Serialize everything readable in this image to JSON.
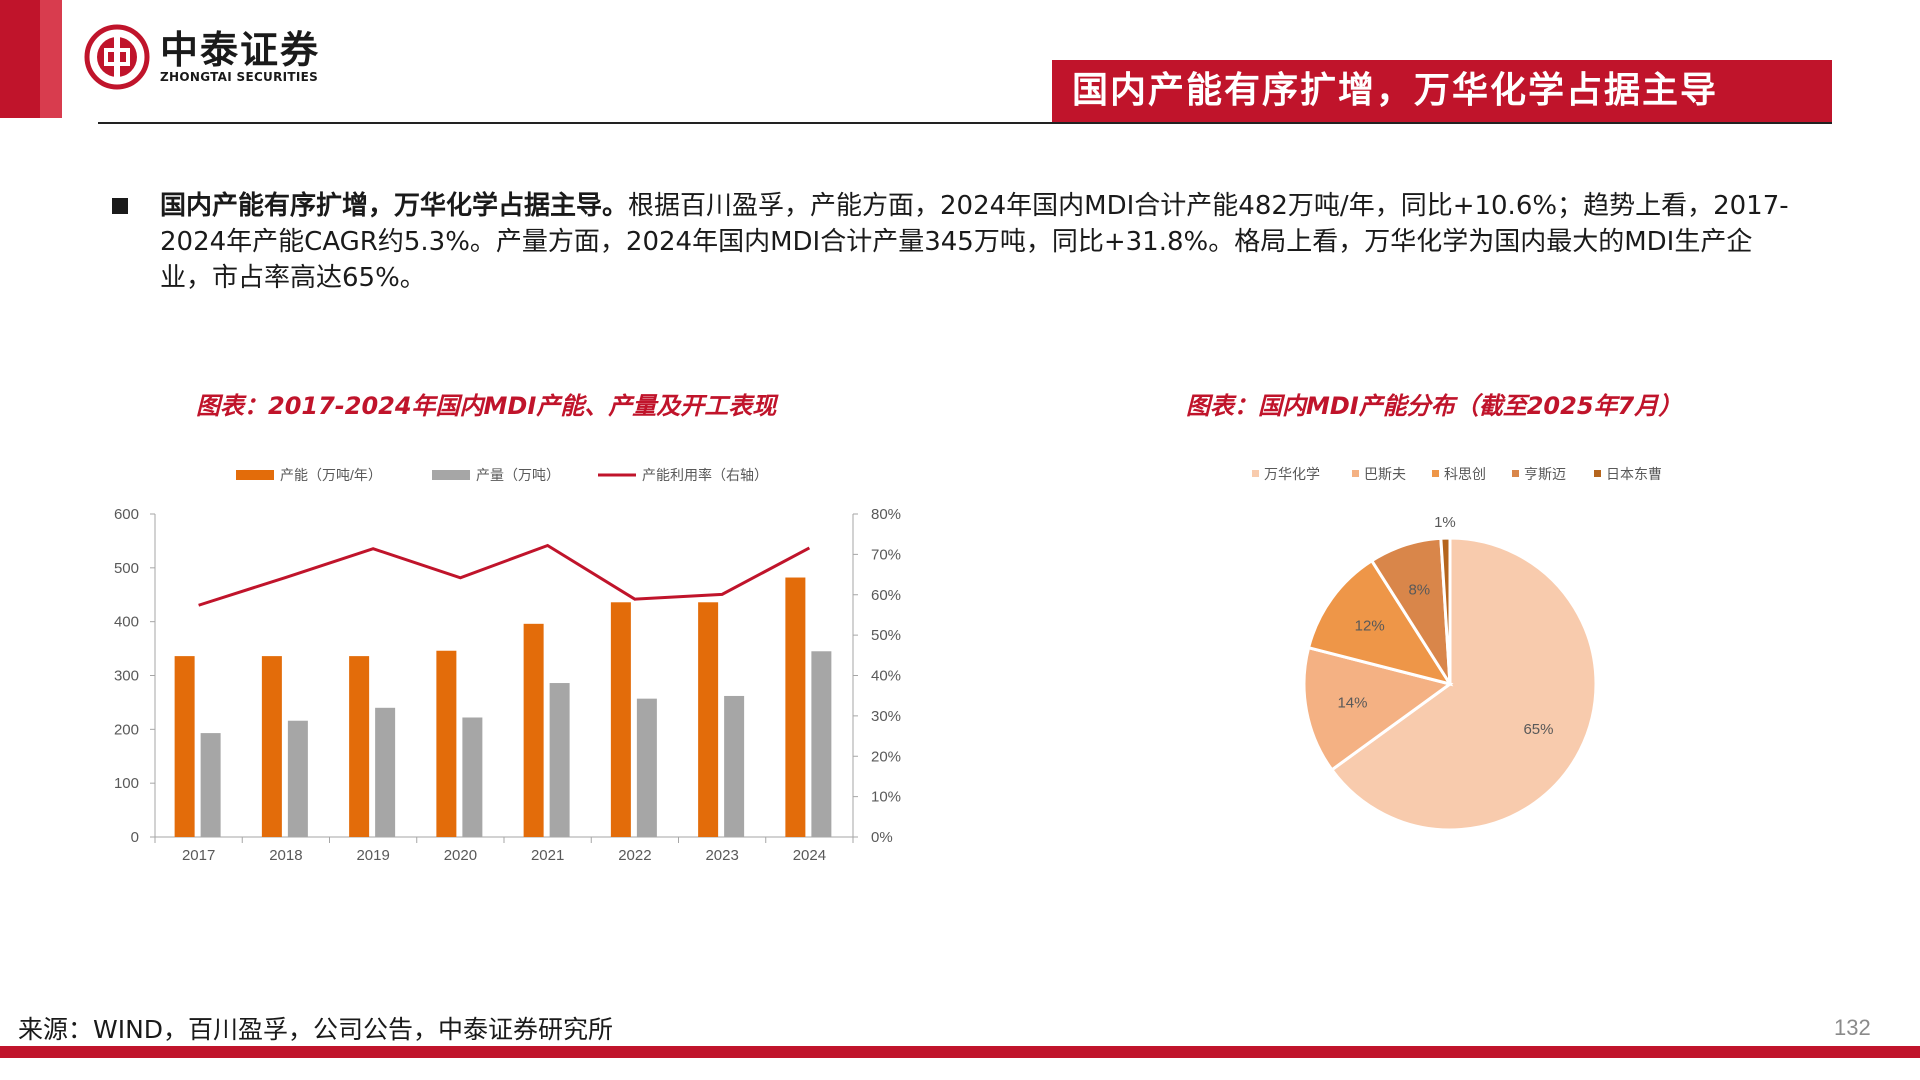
{
  "brand": {
    "name_cn": "中泰证券",
    "name_en": "ZHONGTAI SECURITIES",
    "color": "#c0142b"
  },
  "header": {
    "title": "国内产能有序扩增，万华化学占据主导"
  },
  "bullet": {
    "lead": "国内产能有序扩增，万华化学占据主导。",
    "body": "根据百川盈孚，产能方面，2024年国内MDI合计产能482万吨/年，同比+10.6%；趋势上看，2017-2024年产能CAGR约5.3%。产量方面，2024年国内MDI合计产量345万吨，同比+31.8%。格局上看，万华化学为国内最大的MDI生产企业，市占率高达65%。"
  },
  "charts": {
    "left_title": "图表：2017-2024年国内MDI产能、产量及开工表现",
    "right_title": "图表：国内MDI产能分布（截至2025年7月）"
  },
  "chart_data": [
    {
      "type": "bar",
      "title": "图表：2017-2024年国内MDI产能、产量及开工表现",
      "categories": [
        "2017",
        "2018",
        "2019",
        "2020",
        "2021",
        "2022",
        "2023",
        "2024"
      ],
      "series": [
        {
          "name": "产能（万吨/年）",
          "kind": "bar",
          "axis": "left",
          "color": "#e36c0a",
          "values": [
            336,
            336,
            336,
            346,
            396,
            436,
            436,
            482
          ]
        },
        {
          "name": "产量（万吨）",
          "kind": "bar",
          "axis": "left",
          "color": "#a6a6a6",
          "values": [
            193,
            216,
            240,
            222,
            286,
            257,
            262,
            345
          ]
        },
        {
          "name": "产能利用率（右轴）",
          "kind": "line",
          "axis": "right",
          "color": "#c0142b",
          "values": [
            57.4,
            64.3,
            71.4,
            64.2,
            72.2,
            58.9,
            60.1,
            71.6
          ]
        }
      ],
      "y_left": {
        "min": 0,
        "max": 600,
        "ticks": [
          "0",
          "100",
          "200",
          "300",
          "400",
          "500",
          "600"
        ]
      },
      "y_right": {
        "min": 0,
        "max": 80,
        "ticks": [
          "0%",
          "10%",
          "20%",
          "30%",
          "40%",
          "50%",
          "60%",
          "70%",
          "80%"
        ]
      },
      "legend_position": "top",
      "grid": false
    },
    {
      "type": "pie",
      "title": "图表：国内MDI产能分布（截至2025年7月）",
      "slices": [
        {
          "name": "万华化学",
          "value": 65,
          "label": "65%",
          "color": "#f8cbad"
        },
        {
          "name": "巴斯夫",
          "value": 14,
          "label": "14%",
          "color": "#f4b183"
        },
        {
          "name": "科思创",
          "value": 12,
          "label": "12%",
          "color": "#ee9648"
        },
        {
          "name": "亨斯迈",
          "value": 8,
          "label": "8%",
          "color": "#d9864a"
        },
        {
          "name": "日本东曹",
          "value": 1,
          "label": "1%",
          "color": "#b5651d"
        }
      ],
      "legend_position": "top"
    }
  ],
  "footer": {
    "source": "来源：WIND，百川盈孚，公司公告，中泰证券研究所",
    "page": "132"
  }
}
